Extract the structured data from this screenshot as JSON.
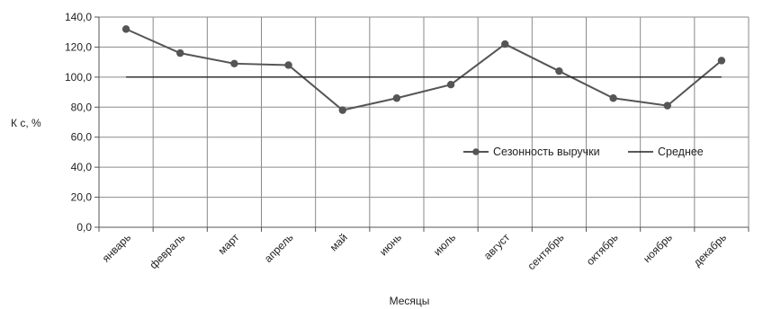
{
  "chart_data": {
    "type": "line",
    "categories": [
      "январь",
      "февраль",
      "март",
      "апрель",
      "май",
      "июнь",
      "июль",
      "август",
      "сентябрь",
      "октябрь",
      "ноябрь",
      "декабрь"
    ],
    "series": [
      {
        "name": "Сезонность выручки",
        "values": [
          132,
          116,
          109,
          108,
          78,
          86,
          95,
          122,
          104,
          86,
          81,
          111
        ],
        "color": "#555555",
        "marker": "circle"
      },
      {
        "name": "Среднее",
        "values": [
          100,
          100,
          100,
          100,
          100,
          100,
          100,
          100,
          100,
          100,
          100,
          100
        ],
        "color": "#222222",
        "marker": "none"
      }
    ],
    "title": "",
    "xlabel": "Месяцы",
    "ylabel": "К с, %",
    "ylim": [
      0,
      140
    ],
    "yticks": [
      "0,0",
      "20,0",
      "40,0",
      "60,0",
      "80,0",
      "100,0",
      "120,0",
      "140,0"
    ],
    "grid": true,
    "legend_position": "right"
  }
}
